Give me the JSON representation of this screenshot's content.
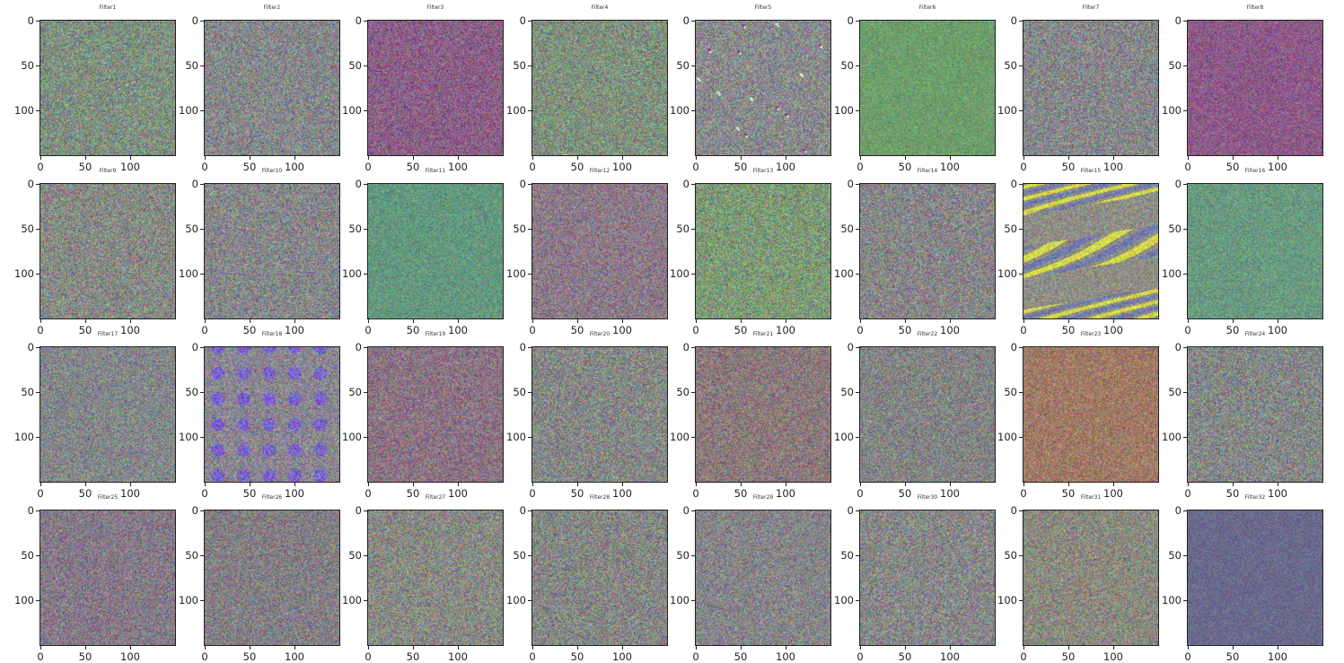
{
  "figure": {
    "rows": 4,
    "cols": 8,
    "y_ticks": [
      "0",
      "50",
      "100"
    ],
    "x_ticks": [
      "0",
      "50",
      "100"
    ],
    "panels": [
      {
        "title": "Filter1",
        "base": "#7f9080",
        "amp": 60,
        "pattern": "noise"
      },
      {
        "title": "Filter2",
        "base": "#85888a",
        "amp": 60,
        "pattern": "noise"
      },
      {
        "title": "Filter3",
        "base": "#8a5f86",
        "amp": 55,
        "pattern": "noise"
      },
      {
        "title": "Filter4",
        "base": "#7f917e",
        "amp": 60,
        "pattern": "noise"
      },
      {
        "title": "Filter5",
        "base": "#898a8c",
        "amp": 60,
        "pattern": "specks"
      },
      {
        "title": "Filter6",
        "base": "#6e9e6c",
        "amp": 35,
        "pattern": "noise"
      },
      {
        "title": "Filter7",
        "base": "#86878a",
        "amp": 60,
        "pattern": "noise"
      },
      {
        "title": "Filter8",
        "base": "#8c5a88",
        "amp": 45,
        "pattern": "noise"
      },
      {
        "title": "Filter9",
        "base": "#878a85",
        "amp": 60,
        "pattern": "noise"
      },
      {
        "title": "Filter10",
        "base": "#86878a",
        "amp": 60,
        "pattern": "noise"
      },
      {
        "title": "Filter11",
        "base": "#64987e",
        "amp": 40,
        "pattern": "noise"
      },
      {
        "title": "Filter12",
        "base": "#8c7a88",
        "amp": 55,
        "pattern": "noise"
      },
      {
        "title": "Filter13",
        "base": "#7d9a76",
        "amp": 60,
        "pattern": "noise"
      },
      {
        "title": "Filter14",
        "base": "#878688",
        "amp": 60,
        "pattern": "noise"
      },
      {
        "title": "Filter15",
        "base": "#8e8e86",
        "amp": 45,
        "pattern": "waves"
      },
      {
        "title": "Filter16",
        "base": "#6a9a80",
        "amp": 40,
        "pattern": "noise"
      },
      {
        "title": "Filter17",
        "base": "#838789",
        "amp": 55,
        "pattern": "noise"
      },
      {
        "title": "Filter18",
        "base": "#8a8690",
        "amp": 55,
        "pattern": "diagonal"
      },
      {
        "title": "Filter19",
        "base": "#8b7383",
        "amp": 55,
        "pattern": "noise"
      },
      {
        "title": "Filter20",
        "base": "#858886",
        "amp": 60,
        "pattern": "noise"
      },
      {
        "title": "Filter21",
        "base": "#8b7a7c",
        "amp": 55,
        "pattern": "noise"
      },
      {
        "title": "Filter22",
        "base": "#838484",
        "amp": 55,
        "pattern": "noise"
      },
      {
        "title": "Filter23",
        "base": "#a07a66",
        "amp": 50,
        "pattern": "noise"
      },
      {
        "title": "Filter24",
        "base": "#848887",
        "amp": 60,
        "pattern": "noise"
      },
      {
        "title": "Filter25",
        "base": "#857a88",
        "amp": 55,
        "pattern": "noise"
      },
      {
        "title": "Filter26",
        "base": "#837f84",
        "amp": 55,
        "pattern": "noise"
      },
      {
        "title": "Filter27",
        "base": "#888a84",
        "amp": 60,
        "pattern": "noise"
      },
      {
        "title": "Filter28",
        "base": "#858784",
        "amp": 60,
        "pattern": "noise"
      },
      {
        "title": "Filter29",
        "base": "#868589",
        "amp": 55,
        "pattern": "noise"
      },
      {
        "title": "Filter30",
        "base": "#878888",
        "amp": 60,
        "pattern": "noise"
      },
      {
        "title": "Filter31",
        "base": "#8a8a7f",
        "amp": 55,
        "pattern": "noise"
      },
      {
        "title": "Filter32",
        "base": "#6a6a8c",
        "amp": 30,
        "pattern": "noise"
      }
    ]
  }
}
